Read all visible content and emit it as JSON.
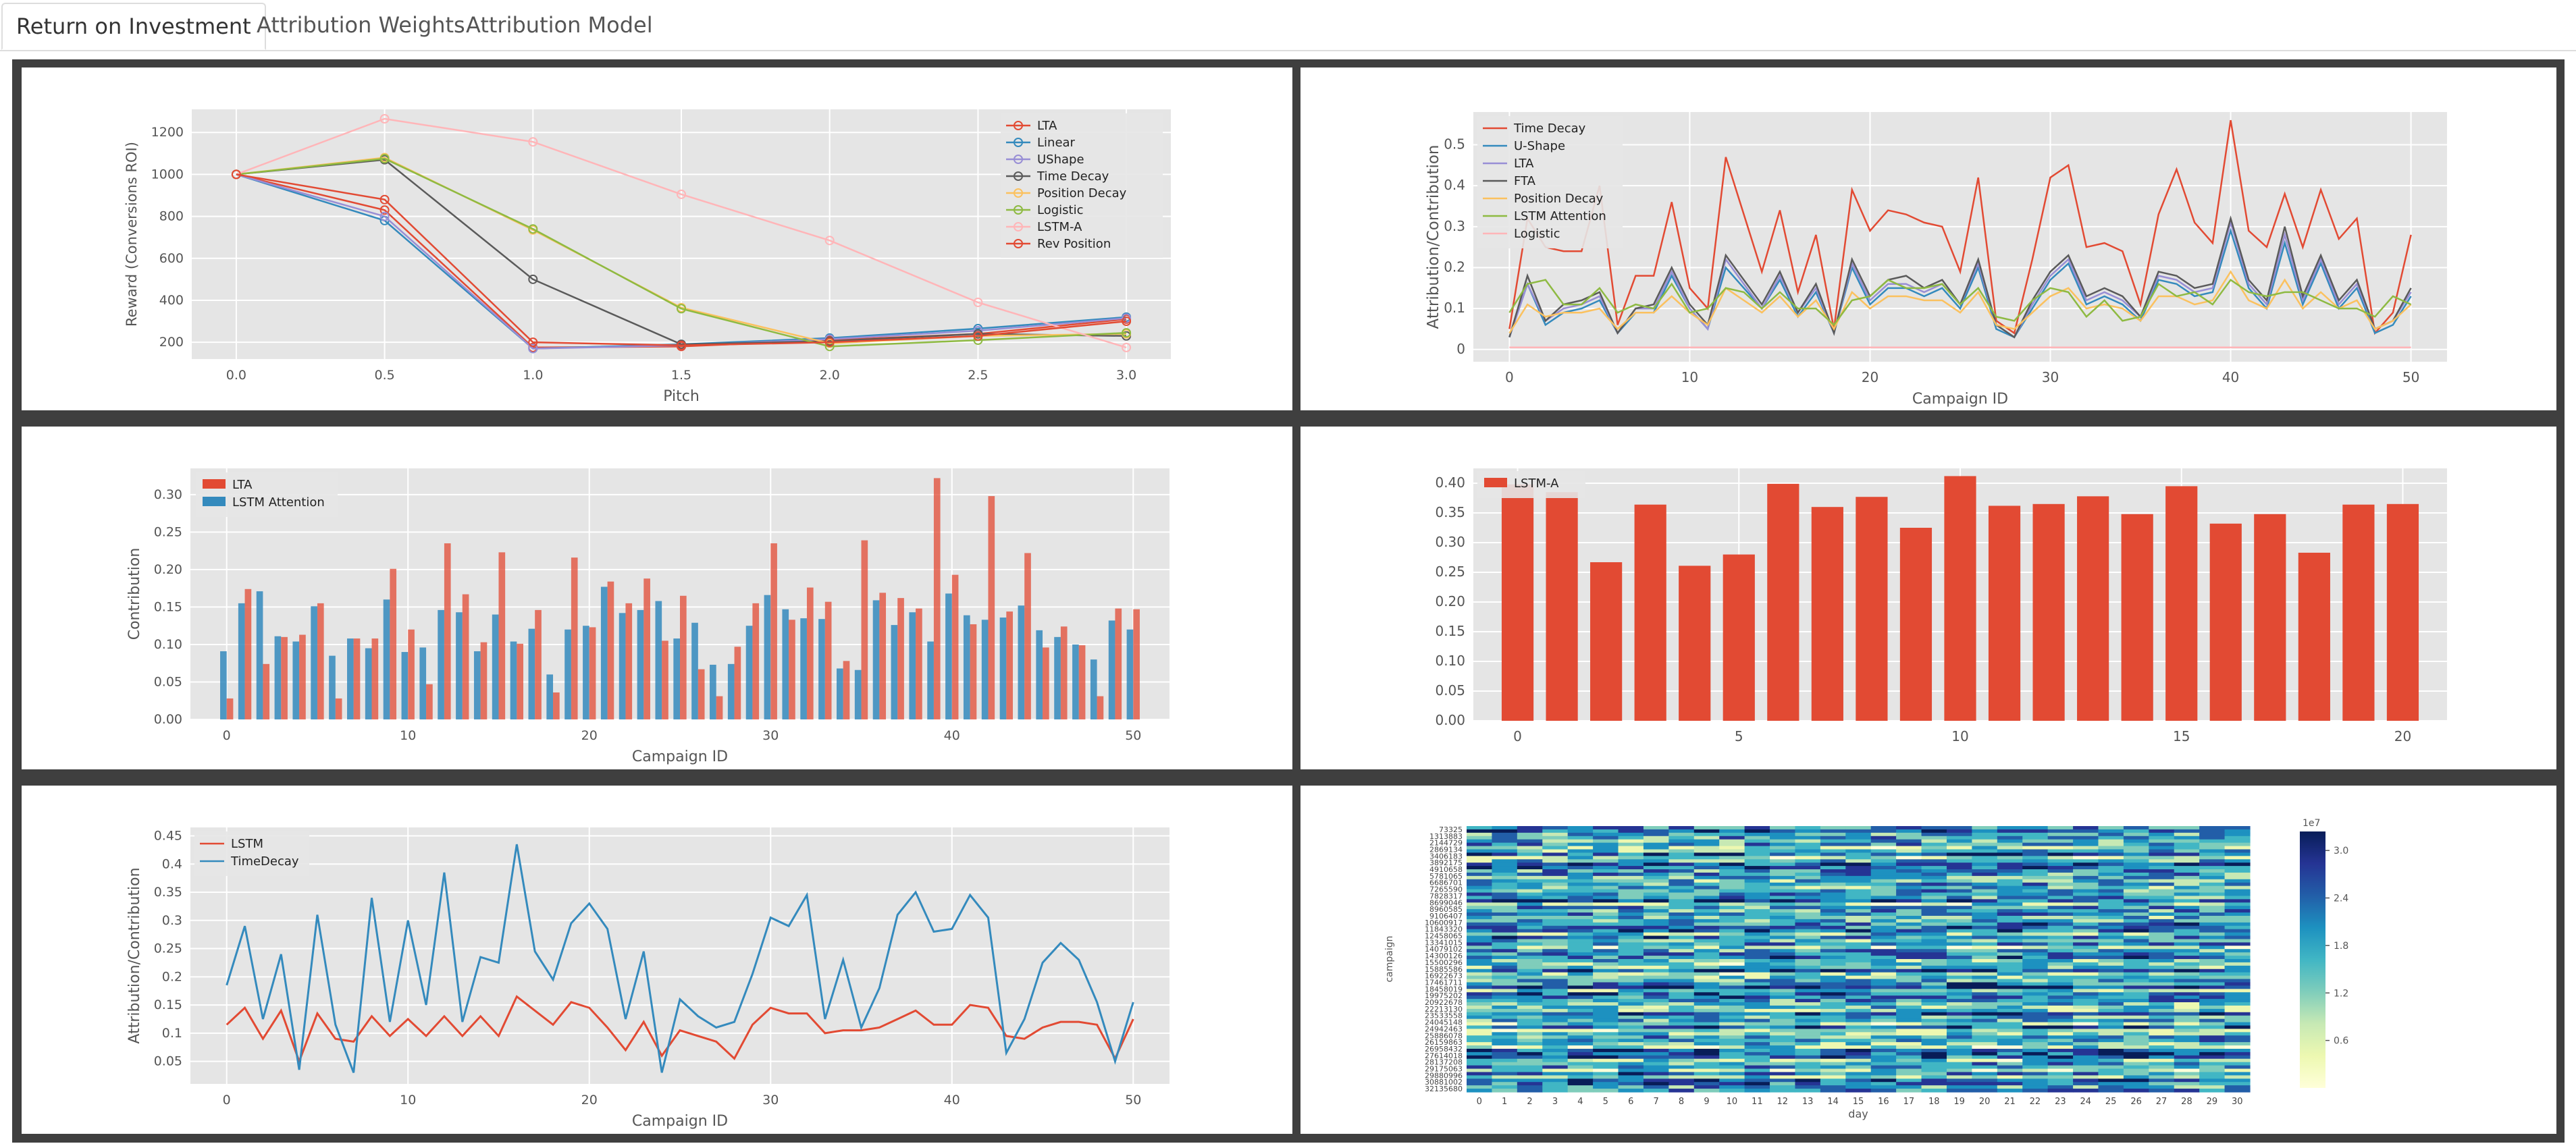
{
  "tabs": [
    {
      "label": "Return on Investment",
      "active": true
    },
    {
      "label": "Attribution Weights",
      "active": false
    },
    {
      "label": "Attribution Model",
      "active": false
    }
  ],
  "colors": {
    "plot_bg": "#e5e5e5",
    "grid": "#ffffff",
    "red": "#e24a33",
    "blue": "#348abd",
    "purple": "#988ed5",
    "gray": "#5a5a5a",
    "yellow": "#fbc15e",
    "green": "#8eba42",
    "pink": "#ffb5b8",
    "darkgray": "#777777"
  },
  "chart_data": [
    {
      "type": "line",
      "xlabel": "Pitch",
      "ylabel": "Reward (Conversions ROI)",
      "x": [
        0.0,
        0.5,
        1.0,
        1.5,
        2.0,
        2.5,
        3.0
      ],
      "xticks": [
        "0.0",
        "0.5",
        "1.0",
        "1.5",
        "2.0",
        "2.5",
        "3.0"
      ],
      "yticks": [
        200,
        400,
        600,
        800,
        1000,
        1200
      ],
      "ylim": [
        120,
        1310
      ],
      "legend": "top-right",
      "markers": true,
      "series": [
        {
          "name": "LTA",
          "color": "#e24a33",
          "values": [
            1000,
            830,
            175,
            180,
            210,
            240,
            310
          ]
        },
        {
          "name": "Linear",
          "color": "#348abd",
          "values": [
            1000,
            780,
            170,
            190,
            220,
            265,
            320
          ]
        },
        {
          "name": "UShape",
          "color": "#988ed5",
          "values": [
            1000,
            800,
            170,
            185,
            215,
            255,
            315
          ]
        },
        {
          "name": "Time Decay",
          "color": "#5a5a5a",
          "values": [
            1000,
            1070,
            500,
            190,
            205,
            240,
            230
          ]
        },
        {
          "name": "Position Decay",
          "color": "#fbc15e",
          "values": [
            1000,
            1080,
            735,
            365,
            195,
            230,
            240
          ]
        },
        {
          "name": "Logistic",
          "color": "#8eba42",
          "values": [
            1000,
            1075,
            740,
            360,
            180,
            210,
            245
          ]
        },
        {
          "name": "LSTM-A",
          "color": "#ffb5b8",
          "values": [
            1000,
            1265,
            1155,
            905,
            685,
            390,
            175
          ]
        },
        {
          "name": "Rev Position",
          "color": "#e24a33",
          "values": [
            1000,
            880,
            200,
            185,
            200,
            230,
            300
          ]
        }
      ]
    },
    {
      "type": "line",
      "xlabel": "Campaign ID",
      "ylabel": "Attribution/Contribution",
      "xticks": [
        0,
        10,
        20,
        30,
        40,
        50
      ],
      "xlim": [
        -2,
        52
      ],
      "yticks": [
        0.0,
        0.1,
        0.2,
        0.3,
        0.4,
        0.5
      ],
      "ylim": [
        -0.03,
        0.58
      ],
      "legend": "top-left",
      "series": [
        {
          "name": "Time Decay",
          "color": "#e24a33",
          "values": [
            0.05,
            0.32,
            0.25,
            0.24,
            0.24,
            0.4,
            0.06,
            0.18,
            0.18,
            0.36,
            0.15,
            0.1,
            0.47,
            0.33,
            0.19,
            0.34,
            0.14,
            0.28,
            0.05,
            0.39,
            0.29,
            0.34,
            0.33,
            0.31,
            0.3,
            0.19,
            0.42,
            0.07,
            0.04,
            0.22,
            0.42,
            0.45,
            0.25,
            0.26,
            0.24,
            0.11,
            0.33,
            0.44,
            0.31,
            0.26,
            0.56,
            0.29,
            0.25,
            0.38,
            0.25,
            0.39,
            0.27,
            0.32,
            0.04,
            0.09,
            0.28
          ]
        },
        {
          "name": "U-Shape",
          "color": "#348abd",
          "values": [
            0.03,
            0.16,
            0.06,
            0.09,
            0.1,
            0.12,
            0.04,
            0.09,
            0.09,
            0.18,
            0.1,
            0.05,
            0.2,
            0.15,
            0.1,
            0.17,
            0.08,
            0.14,
            0.04,
            0.2,
            0.11,
            0.15,
            0.15,
            0.13,
            0.15,
            0.1,
            0.2,
            0.05,
            0.03,
            0.1,
            0.17,
            0.21,
            0.11,
            0.13,
            0.11,
            0.07,
            0.17,
            0.16,
            0.13,
            0.14,
            0.29,
            0.15,
            0.1,
            0.26,
            0.11,
            0.21,
            0.1,
            0.15,
            0.04,
            0.06,
            0.13
          ]
        },
        {
          "name": "LTA",
          "color": "#988ed5",
          "values": [
            0.03,
            0.16,
            0.07,
            0.1,
            0.11,
            0.13,
            0.04,
            0.1,
            0.1,
            0.19,
            0.1,
            0.05,
            0.22,
            0.16,
            0.1,
            0.18,
            0.09,
            0.15,
            0.04,
            0.21,
            0.12,
            0.16,
            0.16,
            0.14,
            0.16,
            0.11,
            0.21,
            0.06,
            0.03,
            0.11,
            0.18,
            0.22,
            0.12,
            0.14,
            0.12,
            0.08,
            0.18,
            0.17,
            0.14,
            0.15,
            0.31,
            0.16,
            0.11,
            0.28,
            0.12,
            0.22,
            0.11,
            0.16,
            0.05,
            0.07,
            0.14
          ]
        },
        {
          "name": "FTA",
          "color": "#5a5a5a",
          "values": [
            0.03,
            0.18,
            0.07,
            0.11,
            0.12,
            0.14,
            0.04,
            0.1,
            0.11,
            0.2,
            0.11,
            0.06,
            0.23,
            0.17,
            0.11,
            0.19,
            0.09,
            0.16,
            0.04,
            0.22,
            0.13,
            0.17,
            0.18,
            0.15,
            0.17,
            0.11,
            0.22,
            0.06,
            0.03,
            0.12,
            0.19,
            0.23,
            0.13,
            0.15,
            0.13,
            0.08,
            0.19,
            0.18,
            0.15,
            0.16,
            0.32,
            0.17,
            0.12,
            0.3,
            0.13,
            0.23,
            0.12,
            0.17,
            0.05,
            0.07,
            0.15
          ]
        },
        {
          "name": "Position Decay",
          "color": "#fbc15e",
          "values": [
            0.04,
            0.11,
            0.08,
            0.09,
            0.09,
            0.1,
            0.05,
            0.09,
            0.09,
            0.13,
            0.09,
            0.06,
            0.15,
            0.12,
            0.09,
            0.13,
            0.08,
            0.12,
            0.05,
            0.14,
            0.1,
            0.13,
            0.13,
            0.12,
            0.12,
            0.09,
            0.14,
            0.06,
            0.05,
            0.09,
            0.13,
            0.15,
            0.1,
            0.11,
            0.1,
            0.07,
            0.13,
            0.13,
            0.11,
            0.12,
            0.19,
            0.12,
            0.1,
            0.17,
            0.1,
            0.14,
            0.1,
            0.12,
            0.05,
            0.07,
            0.11
          ]
        },
        {
          "name": "LSTM Attention",
          "color": "#8eba42",
          "values": [
            0.09,
            0.16,
            0.17,
            0.11,
            0.11,
            0.15,
            0.09,
            0.11,
            0.1,
            0.16,
            0.09,
            0.1,
            0.15,
            0.14,
            0.1,
            0.14,
            0.1,
            0.1,
            0.06,
            0.12,
            0.13,
            0.17,
            0.15,
            0.15,
            0.16,
            0.11,
            0.15,
            0.08,
            0.07,
            0.12,
            0.15,
            0.14,
            0.08,
            0.12,
            0.07,
            0.08,
            0.16,
            0.13,
            0.14,
            0.11,
            0.17,
            0.14,
            0.13,
            0.14,
            0.14,
            0.12,
            0.1,
            0.1,
            0.08,
            0.13,
            0.11
          ]
        },
        {
          "name": "Logistic",
          "color": "#ffb5b8",
          "values": [
            0.005,
            0.005,
            0.005,
            0.005,
            0.005,
            0.005,
            0.005,
            0.005,
            0.005,
            0.005,
            0.005,
            0.005,
            0.005,
            0.005,
            0.005,
            0.005,
            0.005,
            0.005,
            0.005,
            0.005,
            0.005,
            0.005,
            0.005,
            0.005,
            0.005,
            0.005,
            0.005,
            0.005,
            0.005,
            0.005,
            0.005,
            0.005,
            0.005,
            0.005,
            0.005,
            0.005,
            0.005,
            0.005,
            0.005,
            0.005,
            0.005,
            0.005,
            0.005,
            0.005,
            0.005,
            0.005,
            0.005,
            0.005,
            0.005,
            0.005,
            0.005
          ]
        }
      ]
    },
    {
      "type": "bar",
      "xlabel": "Campaign ID",
      "ylabel": "Contribution",
      "xticks": [
        0,
        10,
        20,
        30,
        40,
        50
      ],
      "xlim": [
        -2,
        52
      ],
      "yticks": [
        0.0,
        0.05,
        0.1,
        0.15,
        0.2,
        0.25,
        0.3
      ],
      "yticklabels": [
        "0.00",
        "0.05",
        "0.10",
        "0.15",
        "0.20",
        "0.25",
        "0.30"
      ],
      "ylim": [
        0,
        0.335
      ],
      "legend": "top-left",
      "series": [
        {
          "name": "LTA",
          "color": "#e24a33",
          "values": [
            0.028,
            0.174,
            0.074,
            0.11,
            0.113,
            0.155,
            0.028,
            0.108,
            0.108,
            0.201,
            0.12,
            0.047,
            0.235,
            0.167,
            0.103,
            0.223,
            0.101,
            0.146,
            0.036,
            0.216,
            0.123,
            0.184,
            0.155,
            0.188,
            0.105,
            0.165,
            0.067,
            0.031,
            0.097,
            0.155,
            0.235,
            0.133,
            0.176,
            0.157,
            0.078,
            0.239,
            0.169,
            0.162,
            0.148,
            0.322,
            0.193,
            0.127,
            0.298,
            0.144,
            0.222,
            0.096,
            0.124,
            0.099,
            0.031,
            0.148,
            0.147
          ]
        },
        {
          "name": "LSTM Attention",
          "color": "#348abd",
          "values": [
            0.091,
            0.155,
            0.171,
            0.111,
            0.104,
            0.151,
            0.085,
            0.108,
            0.095,
            0.16,
            0.09,
            0.096,
            0.146,
            0.143,
            0.091,
            0.14,
            0.104,
            0.121,
            0.06,
            0.12,
            0.125,
            0.177,
            0.142,
            0.146,
            0.158,
            0.108,
            0.129,
            0.073,
            0.074,
            0.125,
            0.166,
            0.147,
            0.135,
            0.134,
            0.068,
            0.066,
            0.159,
            0.126,
            0.143,
            0.104,
            0.168,
            0.139,
            0.133,
            0.136,
            0.152,
            0.119,
            0.11,
            0.1,
            0.08,
            0.132,
            0.12
          ]
        }
      ]
    },
    {
      "type": "bar",
      "xticks": [
        0,
        5,
        10,
        15,
        20
      ],
      "xlim": [
        -1,
        21
      ],
      "yticks": [
        0.0,
        0.05,
        0.1,
        0.15,
        0.2,
        0.25,
        0.3,
        0.35,
        0.4
      ],
      "yticklabels": [
        "0.00",
        "0.05",
        "0.10",
        "0.15",
        "0.20",
        "0.25",
        "0.30",
        "0.35",
        "0.40"
      ],
      "ylim": [
        0,
        0.425
      ],
      "legend": "top-left",
      "series": [
        {
          "name": "LSTM-A",
          "color": "#e24a33",
          "values": [
            0.398,
            0.385,
            0.267,
            0.364,
            0.261,
            0.28,
            0.399,
            0.36,
            0.377,
            0.325,
            0.412,
            0.362,
            0.365,
            0.378,
            0.348,
            0.395,
            0.332,
            0.348,
            0.283,
            0.364,
            0.365
          ]
        }
      ]
    },
    {
      "type": "line",
      "xlabel": "Campaign ID",
      "ylabel": "Attribution/Contribution",
      "xticks": [
        0,
        10,
        20,
        30,
        40,
        50
      ],
      "xlim": [
        -2,
        52
      ],
      "yticks": [
        0.05,
        0.1,
        0.15,
        0.2,
        0.25,
        0.3,
        0.35,
        0.4,
        0.45
      ],
      "ylim": [
        0.01,
        0.465
      ],
      "legend": "top-left",
      "series": [
        {
          "name": "LSTM",
          "color": "#e24a33",
          "values": [
            0.115,
            0.145,
            0.09,
            0.14,
            0.05,
            0.135,
            0.09,
            0.085,
            0.13,
            0.095,
            0.125,
            0.095,
            0.13,
            0.095,
            0.13,
            0.095,
            0.165,
            0.14,
            0.115,
            0.155,
            0.145,
            0.11,
            0.07,
            0.12,
            0.06,
            0.105,
            0.095,
            0.085,
            0.055,
            0.115,
            0.145,
            0.135,
            0.135,
            0.1,
            0.105,
            0.105,
            0.11,
            0.125,
            0.14,
            0.115,
            0.115,
            0.15,
            0.145,
            0.095,
            0.09,
            0.11,
            0.12,
            0.12,
            0.115,
            0.055,
            0.125
          ]
        },
        {
          "name": "TimeDecay",
          "color": "#348abd",
          "values": [
            0.185,
            0.29,
            0.125,
            0.24,
            0.035,
            0.31,
            0.115,
            0.03,
            0.34,
            0.12,
            0.3,
            0.15,
            0.385,
            0.12,
            0.235,
            0.225,
            0.435,
            0.245,
            0.195,
            0.295,
            0.33,
            0.285,
            0.125,
            0.245,
            0.03,
            0.16,
            0.13,
            0.11,
            0.12,
            0.205,
            0.305,
            0.29,
            0.345,
            0.125,
            0.23,
            0.11,
            0.18,
            0.31,
            0.35,
            0.28,
            0.285,
            0.345,
            0.305,
            0.065,
            0.125,
            0.225,
            0.26,
            0.23,
            0.155,
            0.05,
            0.155
          ]
        }
      ]
    },
    {
      "type": "heatmap",
      "xlabel": "day",
      "ylabel": "campaign",
      "xticks": [
        "0",
        "1",
        "2",
        "3",
        "4",
        "5",
        "6",
        "7",
        "8",
        "9",
        "10",
        "11",
        "12",
        "13",
        "14",
        "15",
        "16",
        "17",
        "18",
        "19",
        "20",
        "21",
        "22",
        "23",
        "24",
        "25",
        "26",
        "27",
        "28",
        "29",
        "30"
      ],
      "yticks": [
        "73325",
        "1313883",
        "2144729",
        "2869134",
        "3406183",
        "3892175",
        "4910658",
        "5781065",
        "6686701",
        "7265590",
        "7828317",
        "8699046",
        "8960585",
        "9106407",
        "10600917",
        "11843320",
        "12458065",
        "13341015",
        "14079102",
        "14300126",
        "15500296",
        "15885586",
        "16922673",
        "17461711",
        "18458019",
        "19975202",
        "20922678",
        "22213130",
        "23533558",
        "24045148",
        "24942463",
        "25886078",
        "26159863",
        "26958432",
        "27614018",
        "28137208",
        "29175063",
        "29880996",
        "30881002",
        "32135680"
      ],
      "colorbar_ticks": [
        "0.6",
        "1.2",
        "1.8",
        "2.4",
        "3.0"
      ],
      "colorbar_exponent": "1e7",
      "rows": 80,
      "cols": 31
    }
  ]
}
